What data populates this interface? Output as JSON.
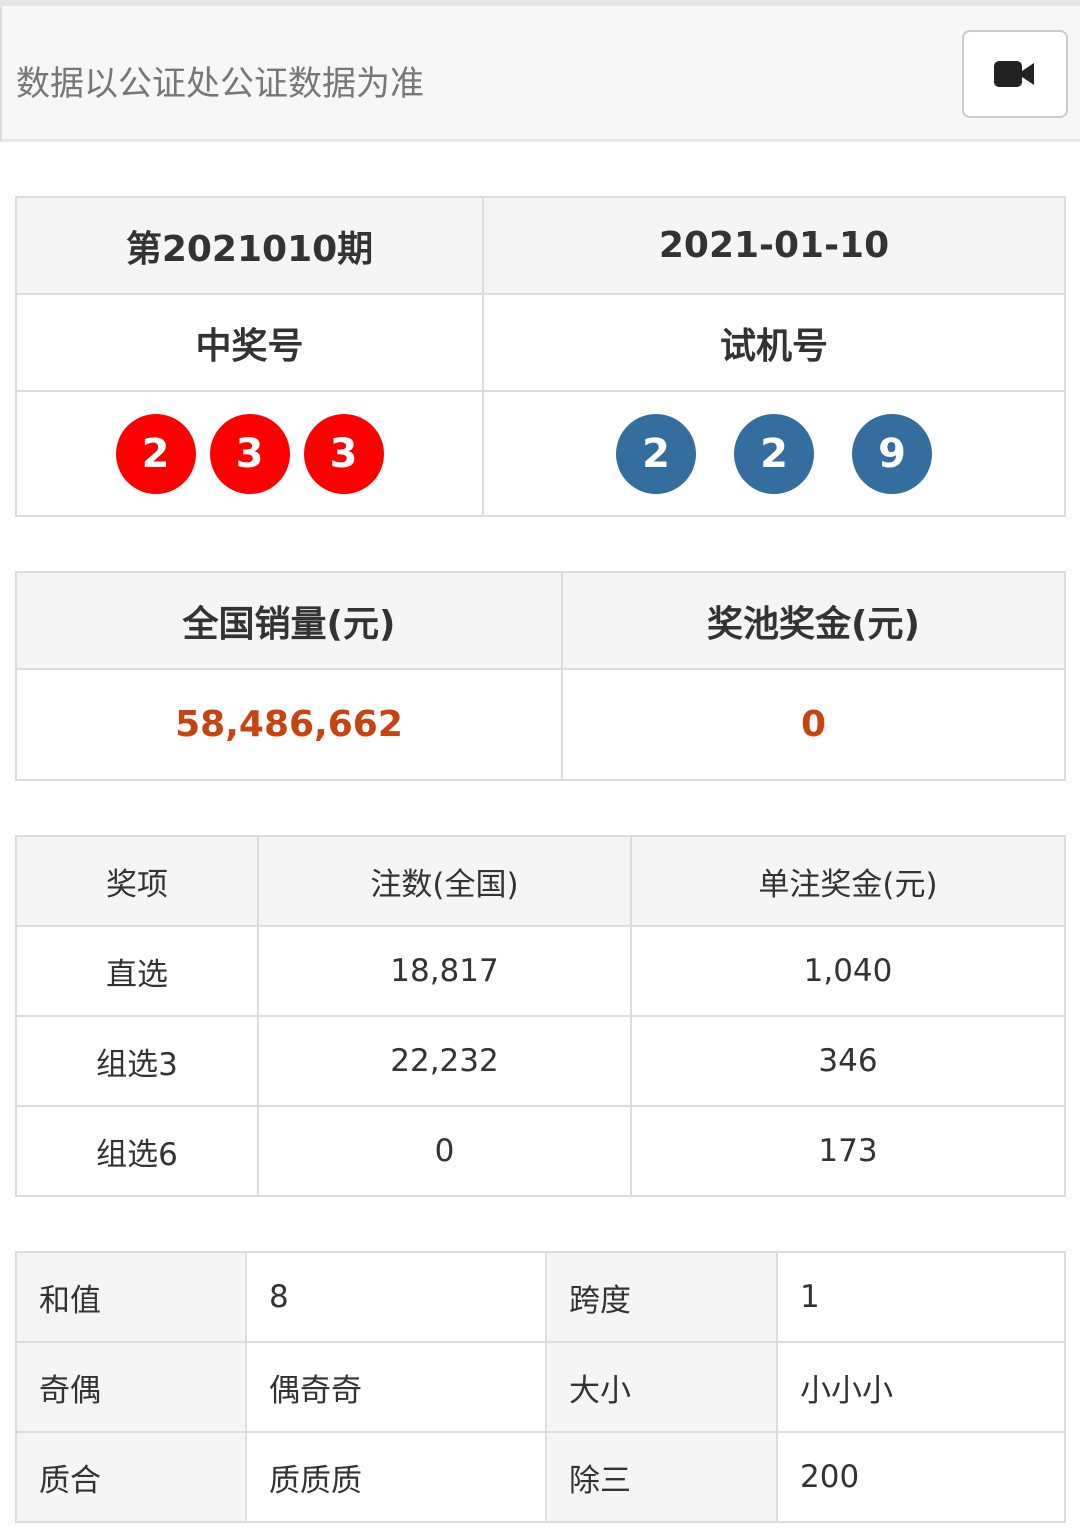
{
  "header": {
    "notice": "数据以公证处公证数据为准",
    "video_icon": "video-camera-icon"
  },
  "draw": {
    "issue": "第2021010期",
    "date": "2021-01-10",
    "winning_label": "中奖号",
    "test_label": "试机号",
    "winning_numbers": [
      "2",
      "3",
      "3"
    ],
    "test_numbers": [
      "2",
      "2",
      "9"
    ],
    "winning_color": "#ff0000",
    "test_color": "#336e9e"
  },
  "sales": {
    "sales_label": "全国销量(元)",
    "pool_label": "奖池奖金(元)",
    "sales_value": "58,486,662",
    "pool_value": "0",
    "value_color": "#c7430f"
  },
  "prizes": {
    "headers": [
      "奖项",
      "注数(全国)",
      "单注奖金(元)"
    ],
    "rows": [
      [
        "直选",
        "18,817",
        "1,040"
      ],
      [
        "组选3",
        "22,232",
        "346"
      ],
      [
        "组选6",
        "0",
        "173"
      ]
    ]
  },
  "stats": {
    "rows": [
      [
        "和值",
        "8",
        "跨度",
        "1"
      ],
      [
        "奇偶",
        "偶奇奇",
        "大小",
        "小小小"
      ],
      [
        "质合",
        "质质质",
        "除三",
        "200"
      ]
    ]
  }
}
